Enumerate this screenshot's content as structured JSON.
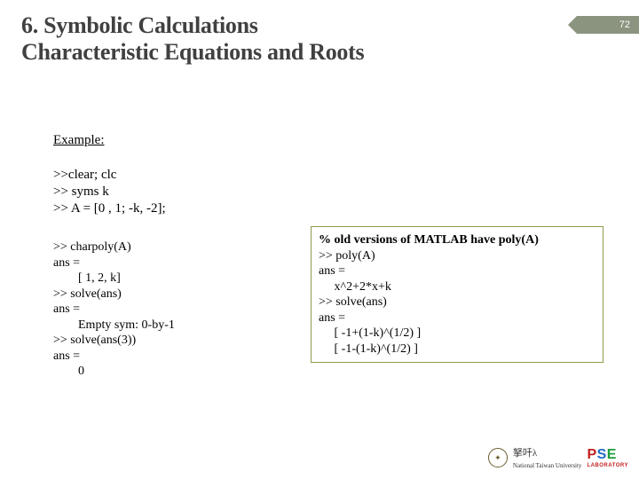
{
  "pageNumber": "72",
  "title": "6. Symbolic Calculations\nCharacteristic Equations and Roots",
  "exampleLabel": "Example:",
  "codeLeft1": ">>clear; clc\n>> syms k\n>> A = [0 , 1; -k, -2];",
  "codeLeft2": ">> charpoly(A)\nans =\n        [ 1, 2, k]\n>> solve(ans)\nans =\n        Empty sym: 0-by-1\n>> solve(ans(3))\nans =\n        0",
  "rightBoxHeader": "% old versions of MATLAB have poly(A)",
  "rightBoxBody": ">> poly(A)\nans = \n     x^2+2*x+k\n>> solve(ans)\nans =\n     [ -1+(1-k)^(1/2) ]\n     [ -1-(1-k)^(1/2) ]",
  "footer": {
    "university": "National Taiwan University",
    "lab": {
      "p": "P",
      "s": "S",
      "e": "E",
      "sub": "LABORATORY"
    }
  },
  "style": {
    "accentBorder": "#8c9b4f",
    "badgeBg": "#8b947e",
    "titleColor": "#404040"
  }
}
